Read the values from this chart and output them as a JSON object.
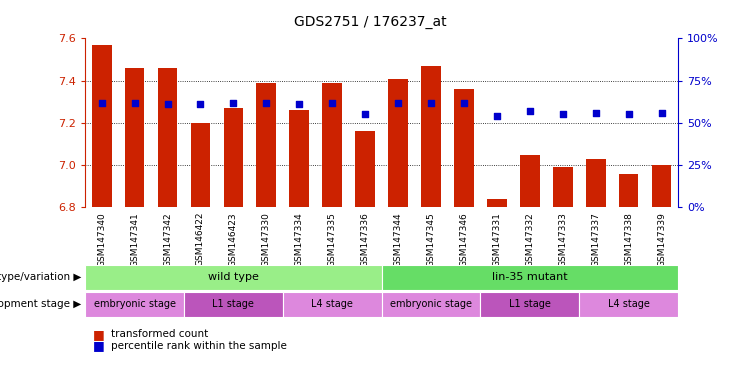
{
  "title": "GDS2751 / 176237_at",
  "samples": [
    "GSM147340",
    "GSM147341",
    "GSM147342",
    "GSM146422",
    "GSM146423",
    "GSM147330",
    "GSM147334",
    "GSM147335",
    "GSM147336",
    "GSM147344",
    "GSM147345",
    "GSM147346",
    "GSM147331",
    "GSM147332",
    "GSM147333",
    "GSM147337",
    "GSM147338",
    "GSM147339"
  ],
  "transformed_count": [
    7.57,
    7.46,
    7.46,
    7.2,
    7.27,
    7.39,
    7.26,
    7.39,
    7.16,
    7.41,
    7.47,
    7.36,
    6.84,
    7.05,
    6.99,
    7.03,
    6.96,
    7.0
  ],
  "percentile_rank": [
    62,
    62,
    61,
    61,
    62,
    62,
    61,
    62,
    55,
    62,
    62,
    62,
    54,
    57,
    55,
    56,
    55,
    56
  ],
  "ymin": 6.8,
  "ymax": 7.6,
  "y2min": 0,
  "y2max": 100,
  "y_ticks": [
    6.8,
    7.0,
    7.2,
    7.4,
    7.6
  ],
  "y2_ticks": [
    0,
    25,
    50,
    75,
    100
  ],
  "bar_color": "#cc2200",
  "dot_color": "#0000cc",
  "bar_width": 0.6,
  "genotype_groups": [
    {
      "label": "wild type",
      "start": 0,
      "end": 9,
      "color": "#99ee88"
    },
    {
      "label": "lin-35 mutant",
      "start": 9,
      "end": 18,
      "color": "#66dd66"
    }
  ],
  "dev_stage_groups": [
    {
      "label": "embryonic stage",
      "start": 0,
      "end": 3,
      "color": "#dd88dd"
    },
    {
      "label": "L1 stage",
      "start": 3,
      "end": 6,
      "color": "#bb55bb"
    },
    {
      "label": "L4 stage",
      "start": 6,
      "end": 9,
      "color": "#dd88dd"
    },
    {
      "label": "embryonic stage",
      "start": 9,
      "end": 12,
      "color": "#dd88dd"
    },
    {
      "label": "L1 stage",
      "start": 12,
      "end": 15,
      "color": "#bb55bb"
    },
    {
      "label": "L4 stage",
      "start": 15,
      "end": 18,
      "color": "#dd88dd"
    }
  ],
  "legend_items": [
    {
      "label": "transformed count",
      "color": "#cc2200"
    },
    {
      "label": "percentile rank within the sample",
      "color": "#0000cc"
    }
  ],
  "genotype_label": "genotype/variation",
  "devstage_label": "development stage",
  "left_axis_color": "#cc2200",
  "right_axis_color": "#0000cc",
  "grid_dotted_ticks": [
    7.0,
    7.2,
    7.4
  ],
  "xtick_bg": "#cccccc"
}
